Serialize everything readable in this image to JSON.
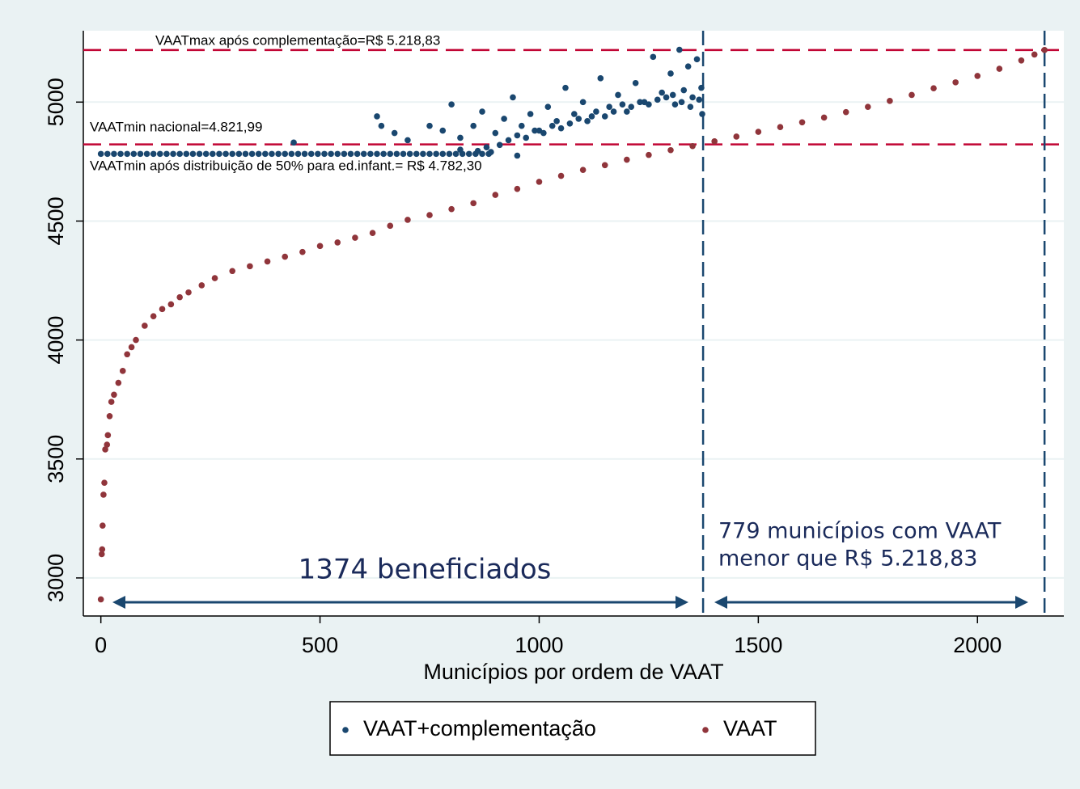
{
  "chart_data": {
    "type": "scatter",
    "x_label": "Municípios por ordem de VAAT",
    "xlim": [
      -40,
      2197
    ],
    "ylim": [
      2840,
      5300
    ],
    "xticks": [
      0,
      500,
      1000,
      1500,
      2000
    ],
    "yticks": [
      3000,
      3500,
      4000,
      4500,
      5000
    ],
    "grid": true,
    "hlines": [
      {
        "value": 5218.83,
        "label": "VAATmax após complementação=R$ 5.218,83",
        "color": "#c10534"
      },
      {
        "value": 4821.99,
        "label": "VAATmin nacional=4.821,99",
        "color": "#c10534"
      }
    ],
    "vlines": [
      {
        "value": 1374,
        "color": "#1a476f"
      },
      {
        "value": 2153,
        "color": "#1a476f"
      }
    ],
    "annotations": [
      "VAATmin após distribuição de 50% para ed.infant.= R$ 4.782,30",
      "1374 beneficiados",
      "779 municípios com VAAT",
      "menor que R$ 5.218,83"
    ],
    "series": [
      {
        "name": "VAAT+complementação",
        "color": "#1a476f",
        "x": [
          0,
          15,
          30,
          45,
          60,
          75,
          90,
          105,
          120,
          135,
          150,
          165,
          180,
          195,
          210,
          225,
          240,
          255,
          270,
          285,
          300,
          315,
          330,
          345,
          360,
          375,
          390,
          405,
          420,
          435,
          450,
          465,
          480,
          495,
          510,
          525,
          540,
          555,
          570,
          585,
          600,
          615,
          630,
          645,
          660,
          675,
          690,
          705,
          720,
          735,
          750,
          765,
          780,
          795,
          810,
          825,
          840,
          855,
          870,
          885,
          440,
          630,
          640,
          670,
          700,
          750,
          780,
          800,
          820,
          850,
          870,
          900,
          920,
          940,
          960,
          980,
          1000,
          1020,
          1040,
          1060,
          1080,
          1100,
          1120,
          1140,
          1160,
          1180,
          1200,
          1220,
          1240,
          1260,
          1280,
          1300,
          1310,
          1320,
          1330,
          1340,
          1350,
          1360,
          1370,
          1372,
          910,
          930,
          950,
          970,
          990,
          1010,
          1030,
          1050,
          1070,
          1090,
          1110,
          1130,
          1150,
          1170,
          1190,
          1210,
          1230,
          1250,
          1270,
          1290,
          1305,
          1325,
          1345,
          1365,
          820,
          860,
          880,
          890,
          950
        ],
        "values": [
          4782.3,
          4782.3,
          4782.3,
          4782.3,
          4782.3,
          4782.3,
          4782.3,
          4782.3,
          4782.3,
          4782.3,
          4782.3,
          4782.3,
          4782.3,
          4782.3,
          4782.3,
          4782.3,
          4782.3,
          4782.3,
          4782.3,
          4782.3,
          4782.3,
          4782.3,
          4782.3,
          4782.3,
          4782.3,
          4782.3,
          4782.3,
          4782.3,
          4782.3,
          4782.3,
          4782.3,
          4782.3,
          4782.3,
          4782.3,
          4782.3,
          4782.3,
          4782.3,
          4782.3,
          4782.3,
          4782.3,
          4782.3,
          4782.3,
          4782.3,
          4782.3,
          4782.3,
          4782.3,
          4782.3,
          4782.3,
          4782.3,
          4782.3,
          4782.3,
          4782.3,
          4782.3,
          4782.3,
          4782.3,
          4782.3,
          4782.3,
          4782.3,
          4782.3,
          4782.3,
          4830,
          4940,
          4900,
          4870,
          4840,
          4900,
          4880,
          4990,
          4850,
          4900,
          4960,
          4870,
          4930,
          5020,
          4900,
          4950,
          4880,
          4980,
          4920,
          5060,
          4950,
          5000,
          4940,
          5100,
          4980,
          5030,
          4960,
          5080,
          5000,
          5190,
          5040,
          5120,
          4990,
          5220,
          5050,
          5150,
          5020,
          5180,
          5060,
          4950,
          4820,
          4840,
          4860,
          4850,
          4880,
          4870,
          4900,
          4890,
          4910,
          4930,
          4920,
          4960,
          4940,
          4960,
          4990,
          4980,
          5000,
          4990,
          5010,
          5020,
          5030,
          5000,
          4980,
          5010,
          4800,
          4795,
          4810,
          4790,
          4775
        ]
      },
      {
        "name": "VAAT",
        "color": "#90353b",
        "x": [
          0,
          2,
          3,
          4,
          6,
          8,
          10,
          14,
          16,
          20,
          24,
          30,
          40,
          50,
          60,
          70,
          80,
          100,
          120,
          140,
          160,
          180,
          200,
          230,
          260,
          300,
          340,
          380,
          420,
          460,
          500,
          540,
          580,
          620,
          660,
          700,
          750,
          800,
          850,
          900,
          950,
          1000,
          1050,
          1100,
          1150,
          1200,
          1250,
          1300,
          1350,
          1400,
          1450,
          1500,
          1550,
          1600,
          1650,
          1700,
          1750,
          1800,
          1850,
          1900,
          1950,
          2000,
          2050,
          2100,
          2130,
          2153
        ],
        "values": [
          2910,
          3100,
          3120,
          3220,
          3350,
          3400,
          3540,
          3560,
          3600,
          3680,
          3740,
          3770,
          3820,
          3870,
          3940,
          3970,
          4000,
          4060,
          4100,
          4130,
          4150,
          4180,
          4200,
          4230,
          4260,
          4290,
          4310,
          4330,
          4350,
          4370,
          4395,
          4410,
          4430,
          4450,
          4480,
          4505,
          4525,
          4550,
          4575,
          4610,
          4635,
          4665,
          4690,
          4715,
          4735,
          4758,
          4778,
          4798,
          4815,
          4835,
          4855,
          4875,
          4895,
          4915,
          4935,
          4958,
          4980,
          5005,
          5030,
          5058,
          5083,
          5110,
          5140,
          5175,
          5200,
          5219
        ]
      }
    ]
  }
}
